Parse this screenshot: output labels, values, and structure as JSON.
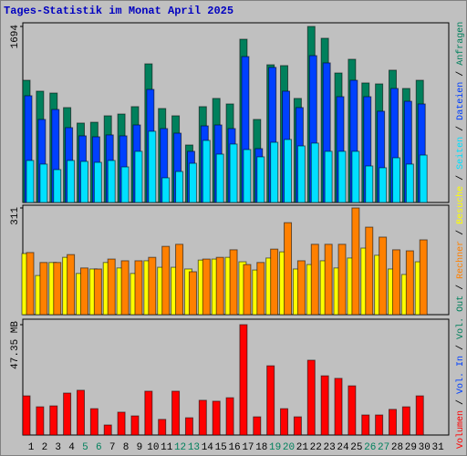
{
  "chart_data": [
    {
      "type": "bar",
      "title": "Tages-Statistik im Monat April 2025",
      "ylim": [
        0,
        1729
      ],
      "yticks": [
        1694
      ],
      "series": [
        {
          "name": "Anfragen",
          "color": "#00805c",
          "values": [
            1176,
            1071,
            1053,
            913,
            764,
            772,
            834,
            851,
            922,
            1334,
            904,
            834,
            553,
            922,
            1001,
            948,
            1571,
            799,
            1325,
            1317,
            1001,
            1694,
            1580,
            1246,
            1378,
            1150,
            1141,
            1273,
            1097,
            1176,
            null
          ]
        },
        {
          "name": "Dateien",
          "color": "#0040ff",
          "values": [
            1027,
            799,
            895,
            720,
            641,
            632,
            650,
            641,
            746,
            1088,
            711,
            667,
            492,
            737,
            746,
            711,
            1404,
            518,
            1300,
            1071,
            913,
            1413,
            1343,
            1018,
            1176,
            1018,
            878,
            1097,
            974,
            948,
            null
          ]
        },
        {
          "name": "Seiten",
          "color": "#00e0ff",
          "values": [
            404,
            369,
            316,
            404,
            395,
            386,
            404,
            342,
            492,
            685,
            237,
            298,
            377,
            597,
            465,
            562,
            509,
            439,
            579,
            606,
            544,
            571,
            492,
            492,
            492,
            351,
            334,
            430,
            369,
            456,
            null
          ]
        }
      ]
    },
    {
      "type": "bar",
      "ylim": [
        0,
        319
      ],
      "yticks": [
        311
      ],
      "series": [
        {
          "name": "Besuche",
          "color": "#ffff00",
          "values": [
            178,
            114,
            152,
            167,
            120,
            133,
            152,
            136,
            120,
            157,
            138,
            138,
            133,
            159,
            162,
            167,
            154,
            130,
            165,
            183,
            133,
            146,
            157,
            136,
            165,
            194,
            173,
            133,
            117,
            154,
            null
          ]
        },
        {
          "name": "Rechner",
          "color": "#ff8000",
          "values": [
            181,
            152,
            152,
            175,
            136,
            133,
            162,
            157,
            157,
            167,
            199,
            205,
            125,
            162,
            167,
            189,
            146,
            152,
            191,
            268,
            157,
            205,
            205,
            205,
            311,
            255,
            226,
            189,
            186,
            218,
            null
          ]
        }
      ]
    },
    {
      "type": "bar",
      "ylim": [
        0,
        49.7
      ],
      "yticks": [
        {
          "value": 47.35,
          "label": "47.35 MB"
        }
      ],
      "categories": [
        "1",
        "2",
        "3",
        "4",
        "5",
        "6",
        "7",
        "8",
        "9",
        "10",
        "11",
        "12",
        "13",
        "14",
        "15",
        "16",
        "17",
        "18",
        "19",
        "20",
        "21",
        "22",
        "23",
        "24",
        "25",
        "26",
        "27",
        "28",
        "29",
        "30",
        "31"
      ],
      "category_colors": [
        "#000000",
        "#000000",
        "#000000",
        "#000000",
        "#00805c",
        "#00805c",
        "#000000",
        "#000000",
        "#000000",
        "#000000",
        "#000000",
        "#00805c",
        "#00805c",
        "#000000",
        "#000000",
        "#000000",
        "#000000",
        "#000000",
        "#00805c",
        "#00805c",
        "#000000",
        "#000000",
        "#000000",
        "#000000",
        "#000000",
        "#00805c",
        "#00805c",
        "#000000",
        "#000000",
        "#000000",
        "#000000"
      ],
      "series": [
        {
          "name": "Volumen",
          "color": "#ff0000",
          "values": [
            16.8,
            12.1,
            12.5,
            18.0,
            19.2,
            11.3,
            4.3,
            9.8,
            8.2,
            18.8,
            6.7,
            18.8,
            7.4,
            14.9,
            14.5,
            16.0,
            47.35,
            7.8,
            29.7,
            11.3,
            7.8,
            32.1,
            25.4,
            24.3,
            21.1,
            8.6,
            8.6,
            11.0,
            12.1,
            16.8,
            null
          ]
        }
      ],
      "extra_legend": [
        {
          "name": "Vol. In",
          "color": "#0040ff"
        },
        {
          "name": "Vol. Out",
          "color": "#00805c"
        }
      ],
      "legend_separator": "/"
    }
  ]
}
